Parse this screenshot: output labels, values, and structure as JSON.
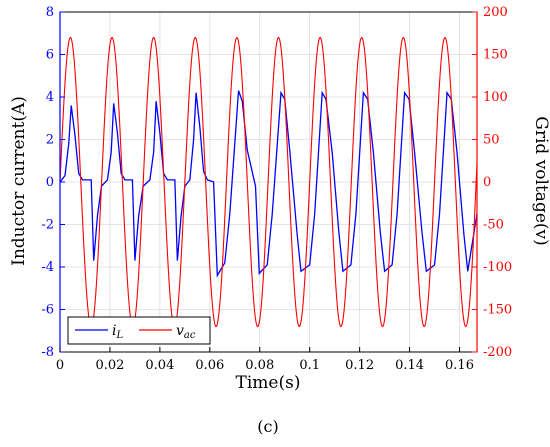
{
  "chart_data": {
    "type": "line",
    "xlabel": "Time(s)",
    "ylabel_left": "Inductor current(A)",
    "ylabel_right": "Grid voltage(v)",
    "caption": "(c)",
    "xlim": [
      0,
      0.167
    ],
    "ylim_left": [
      -8,
      8
    ],
    "ylim_right": [
      -200,
      200
    ],
    "x_ticks": [
      "0",
      "0.02",
      "0.04",
      "0.06",
      "0.08",
      "0.1",
      "0.12",
      "0.14",
      "0.16"
    ],
    "x_tick_values": [
      0,
      0.02,
      0.04,
      0.06,
      0.08,
      0.1,
      0.12,
      0.14,
      0.16
    ],
    "y_left_ticks": [
      "-8",
      "-6",
      "-4",
      "-2",
      "0",
      "2",
      "4",
      "6",
      "8"
    ],
    "y_left_tick_values": [
      -8,
      -6,
      -4,
      -2,
      0,
      2,
      4,
      6,
      8
    ],
    "y_right_ticks": [
      "-200",
      "-150",
      "-100",
      "-50",
      "0",
      "50",
      "100",
      "150",
      "200"
    ],
    "y_right_tick_values": [
      -200,
      -150,
      -100,
      -50,
      0,
      50,
      100,
      150,
      200
    ],
    "grid": true,
    "legend_position": "bottom-left",
    "series": [
      {
        "name": "i_L",
        "label_main": "i",
        "label_sub": "L",
        "axis": "left",
        "color": "#0000ff",
        "x": [
          0,
          0.002,
          0.0035,
          0.0045,
          0.006,
          0.0075,
          0.009,
          0.0125,
          0.0135,
          0.015,
          0.0166,
          0.019,
          0.0205,
          0.0215,
          0.023,
          0.0245,
          0.026,
          0.029,
          0.03,
          0.0315,
          0.0333,
          0.036,
          0.0375,
          0.0385,
          0.04,
          0.0415,
          0.043,
          0.046,
          0.047,
          0.0485,
          0.05,
          0.052,
          0.0535,
          0.0545,
          0.056,
          0.0575,
          0.059,
          0.0615,
          0.063,
          0.066,
          0.068,
          0.0715,
          0.073,
          0.075,
          0.0783,
          0.0798,
          0.083,
          0.085,
          0.0885,
          0.09,
          0.092,
          0.095,
          0.0965,
          0.1,
          0.102,
          0.105,
          0.1065,
          0.109,
          0.1117,
          0.1133,
          0.1165,
          0.1185,
          0.1215,
          0.1232,
          0.1255,
          0.1283,
          0.13,
          0.133,
          0.135,
          0.138,
          0.1398,
          0.142,
          0.145,
          0.1467,
          0.15,
          0.152,
          0.155,
          0.1567,
          0.159,
          0.1617,
          0.1633,
          0.167
        ],
        "y": [
          0,
          0.3,
          1.8,
          3.6,
          2.2,
          0.4,
          0.1,
          0.1,
          -3.7,
          -1.6,
          -0.2,
          0.1,
          1.4,
          3.7,
          2.3,
          0.4,
          0.1,
          0.1,
          -3.7,
          -1.6,
          -0.2,
          0.1,
          1.4,
          3.8,
          2.3,
          0.4,
          0.1,
          0.1,
          -3.7,
          -1.6,
          -0.2,
          0.1,
          2.0,
          4.2,
          2.6,
          0.5,
          0.1,
          0.0,
          -4.4,
          -3.8,
          -1.5,
          4.3,
          3.8,
          1.5,
          -0.2,
          -4.3,
          -3.9,
          -1.5,
          4.2,
          3.9,
          1.5,
          -2.5,
          -4.2,
          -3.9,
          -1.5,
          4.2,
          3.9,
          1.4,
          -2.4,
          -4.2,
          -3.9,
          -1.5,
          4.2,
          3.9,
          1.4,
          -2.4,
          -4.2,
          -3.9,
          -1.5,
          4.2,
          3.9,
          1.4,
          -2.4,
          -4.2,
          -3.9,
          -1.5,
          4.2,
          3.9,
          1.4,
          -2.4,
          -4.2,
          -1.5
        ]
      },
      {
        "name": "v_ac",
        "label_main": "v",
        "label_sub": "ac",
        "axis": "right",
        "color": "#ff0000",
        "amplitude": 170,
        "frequency_hz": 60,
        "phase_deg": 0
      }
    ]
  }
}
